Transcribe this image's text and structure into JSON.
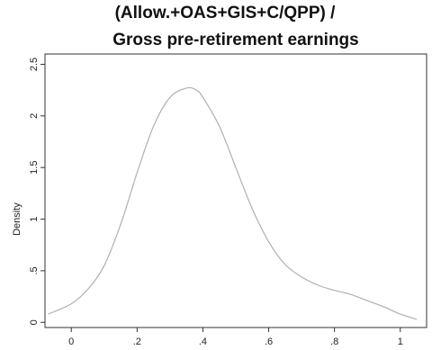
{
  "chart_data": {
    "type": "line",
    "title_lines": [
      "(Allow.+OAS+GIS+C/QPP) /",
      "Gross pre-retirement earnings"
    ],
    "xlabel": "",
    "ylabel": "Density",
    "xlim": [
      -0.08,
      1.08
    ],
    "ylim": [
      -0.05,
      2.6
    ],
    "xticks": [
      0,
      0.2,
      0.4,
      0.6,
      0.8,
      1
    ],
    "xtick_labels": [
      "0",
      ".2",
      ".4",
      ".6",
      ".8",
      "1"
    ],
    "yticks": [
      0,
      0.5,
      1,
      1.5,
      2,
      2.5
    ],
    "ytick_labels": [
      "0",
      ".5",
      "1",
      "1.5",
      "2",
      "2.5"
    ],
    "grid": false,
    "series": [
      {
        "x": [
          -0.07,
          0.0,
          0.05,
          0.1,
          0.15,
          0.2,
          0.25,
          0.3,
          0.35,
          0.38,
          0.4,
          0.45,
          0.5,
          0.55,
          0.6,
          0.65,
          0.7,
          0.75,
          0.8,
          0.85,
          0.9,
          0.95,
          1.0,
          1.05
        ],
        "y": [
          0.08,
          0.18,
          0.32,
          0.55,
          0.95,
          1.45,
          1.9,
          2.18,
          2.27,
          2.25,
          2.18,
          1.9,
          1.5,
          1.1,
          0.78,
          0.56,
          0.44,
          0.36,
          0.31,
          0.27,
          0.21,
          0.15,
          0.08,
          0.03
        ],
        "color": "#b0b0b0"
      }
    ]
  }
}
